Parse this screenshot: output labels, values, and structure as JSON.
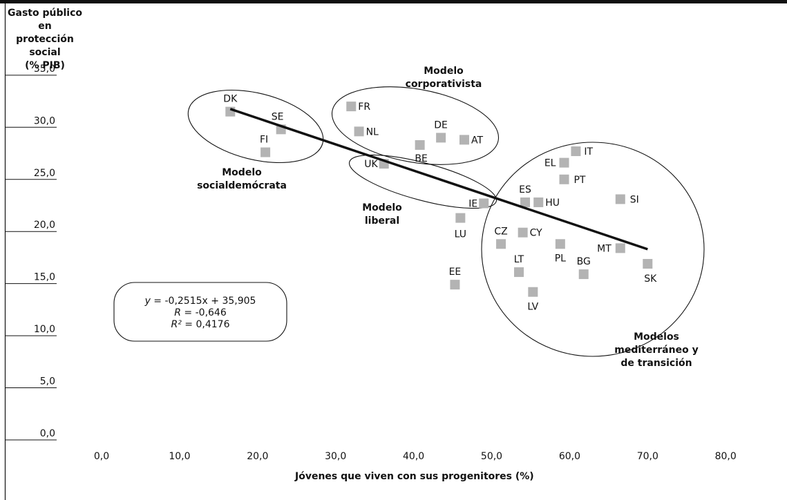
{
  "chart_data": {
    "type": "scatter",
    "ylabel": [
      "Gasto público en",
      "protección social",
      "(% PIB)"
    ],
    "xlabel": "Jóvenes que viven con sus progenitores (%)",
    "xlim": [
      0,
      80
    ],
    "ylim": [
      0,
      35
    ],
    "x_ticks": [
      "0,0",
      "10,0",
      "20,0",
      "30,0",
      "40,0",
      "50,0",
      "60,0",
      "70,0",
      "80,0"
    ],
    "y_ticks": [
      "0,0",
      "5,0",
      "10,0",
      "15,0",
      "20,0",
      "25,0",
      "30,0",
      "35,0"
    ],
    "points": [
      {
        "label": "DK",
        "x": 16.5,
        "y": 31.5
      },
      {
        "label": "SE",
        "x": 23.0,
        "y": 29.8
      },
      {
        "label": "FI",
        "x": 21.0,
        "y": 27.6
      },
      {
        "label": "FR",
        "x": 32.0,
        "y": 32.0
      },
      {
        "label": "NL",
        "x": 33.0,
        "y": 29.6
      },
      {
        "label": "DE",
        "x": 43.5,
        "y": 29.0
      },
      {
        "label": "AT",
        "x": 46.5,
        "y": 28.8
      },
      {
        "label": "BE",
        "x": 40.8,
        "y": 28.3
      },
      {
        "label": "UK",
        "x": 36.2,
        "y": 26.5
      },
      {
        "label": "IE",
        "x": 49.0,
        "y": 22.7
      },
      {
        "label": "LU",
        "x": 46.0,
        "y": 21.3
      },
      {
        "label": "EE",
        "x": 45.3,
        "y": 14.9
      },
      {
        "label": "IT",
        "x": 60.8,
        "y": 27.7
      },
      {
        "label": "EL",
        "x": 59.3,
        "y": 26.6
      },
      {
        "label": "PT",
        "x": 59.3,
        "y": 25.0
      },
      {
        "label": "ES",
        "x": 54.3,
        "y": 22.8
      },
      {
        "label": "HU",
        "x": 56.0,
        "y": 22.8
      },
      {
        "label": "SI",
        "x": 66.5,
        "y": 23.1
      },
      {
        "label": "CZ",
        "x": 51.2,
        "y": 18.8
      },
      {
        "label": "CY",
        "x": 54.0,
        "y": 19.9
      },
      {
        "label": "PL",
        "x": 58.8,
        "y": 18.8
      },
      {
        "label": "MT",
        "x": 66.5,
        "y": 18.4
      },
      {
        "label": "LT",
        "x": 53.5,
        "y": 16.1
      },
      {
        "label": "BG",
        "x": 61.8,
        "y": 15.9
      },
      {
        "label": "SK",
        "x": 70.0,
        "y": 16.9
      },
      {
        "label": "LV",
        "x": 55.3,
        "y": 14.2
      }
    ],
    "trendline": {
      "x_from": 16.5,
      "x_to": 70.0
    },
    "groups": [
      {
        "name": "Modelo socialdemócrata",
        "lines": [
          "Modelo",
          "socialdemócrata"
        ]
      },
      {
        "name": "Modelo corporativista",
        "lines": [
          "Modelo",
          "corporativista"
        ]
      },
      {
        "name": "Modelo liberal",
        "lines": [
          "Modelo",
          "liberal"
        ]
      },
      {
        "name": "Modelos mediterráneo y de transición",
        "lines": [
          "Modelos",
          "mediterráneo y",
          "de transición"
        ]
      }
    ],
    "equation": {
      "line1_var": "y",
      "line1_rest": " = -0,2515x + 35,905",
      "line2_var": "R",
      "line2_rest": " = -0,646",
      "line3_var": "R²",
      "line3_rest": " = 0,4176"
    },
    "colors": {
      "marker": "#b3b3b3",
      "line": "#111111",
      "text": "#111111",
      "frame": "#111111"
    }
  }
}
